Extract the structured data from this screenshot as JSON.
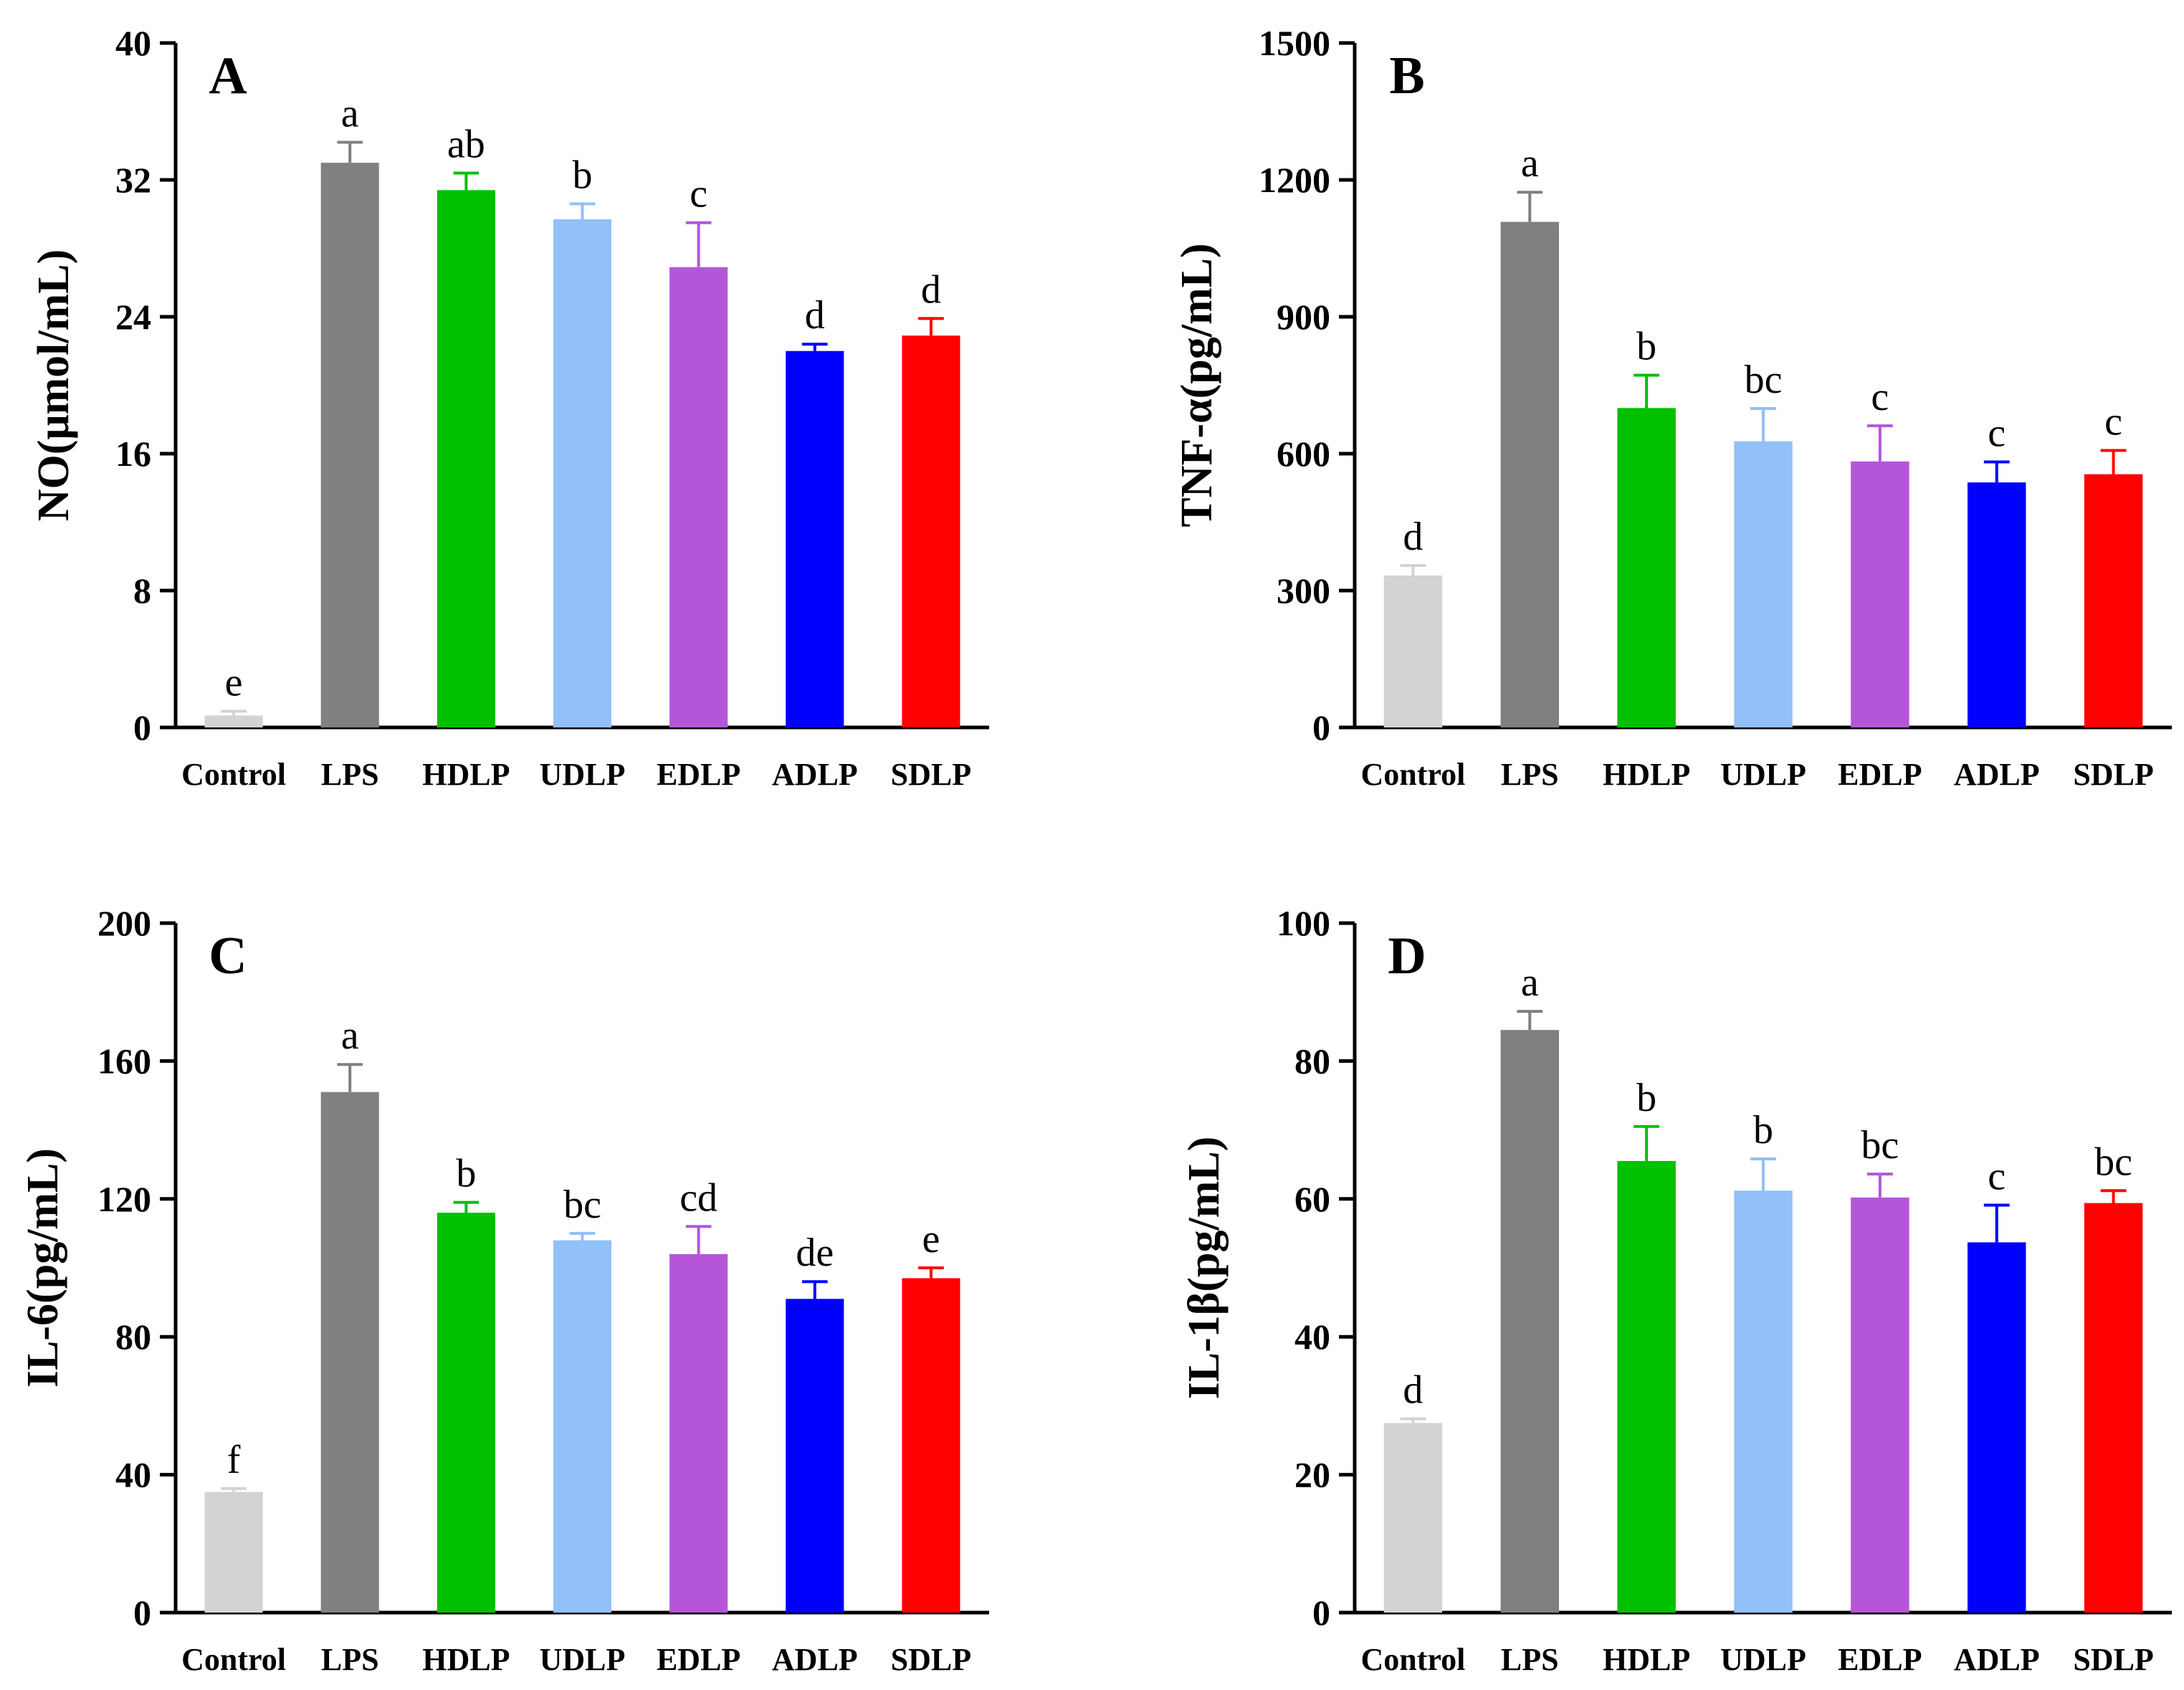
{
  "chart_data": [
    {
      "type": "bar",
      "panel": "A",
      "ylabel": "NO(μmol/mL)",
      "ylim": [
        0,
        40
      ],
      "yticks": [
        0,
        8,
        16,
        24,
        32,
        40
      ],
      "ytick_labels": [
        "0",
        "8",
        "16",
        "24",
        "32",
        "40"
      ],
      "categories": [
        "Control",
        "LPS",
        "HDLP",
        "UDLP",
        "EDLP",
        "ADLP",
        "SDLP"
      ],
      "values": [
        0.7,
        33.0,
        31.4,
        29.7,
        26.9,
        22.0,
        22.9
      ],
      "errors": [
        0.25,
        1.2,
        1.0,
        0.9,
        2.6,
        0.4,
        1.0
      ],
      "significance": [
        "e",
        "a",
        "ab",
        "b",
        "c",
        "d",
        "d"
      ],
      "colors": [
        "#d3d3d3",
        "#808080",
        "#00c000",
        "#92c0f8",
        "#b556d8",
        "#0000ff",
        "#ff0000"
      ]
    },
    {
      "type": "bar",
      "panel": "B",
      "ylabel": "TNF-α(pg/mL)",
      "ylim": [
        0,
        1500
      ],
      "yticks": [
        0,
        300,
        600,
        900,
        1200,
        1500
      ],
      "ytick_labels": [
        "0",
        "300",
        "600",
        "900",
        "1200",
        "1500"
      ],
      "categories": [
        "Control",
        "LPS",
        "HDLP",
        "UDLP",
        "EDLP",
        "ADLP",
        "SDLP"
      ],
      "values": [
        333,
        1108,
        700,
        627,
        583,
        537,
        555
      ],
      "errors": [
        22,
        65,
        72,
        72,
        78,
        45,
        52
      ],
      "significance": [
        "d",
        "a",
        "b",
        "bc",
        "c",
        "c",
        "c"
      ],
      "colors": [
        "#d3d3d3",
        "#808080",
        "#00c000",
        "#92c0f8",
        "#b556d8",
        "#0000ff",
        "#ff0000"
      ]
    },
    {
      "type": "bar",
      "panel": "C",
      "ylabel": "IL-6(pg/mL)",
      "ylim": [
        0,
        200
      ],
      "yticks": [
        0,
        40,
        80,
        120,
        160,
        200
      ],
      "ytick_labels": [
        "0",
        "40",
        "80",
        "120",
        "160",
        "200"
      ],
      "categories": [
        "Control",
        "LPS",
        "HDLP",
        "UDLP",
        "EDLP",
        "ADLP",
        "SDLP"
      ],
      "values": [
        35,
        151,
        116,
        108,
        104,
        91,
        97
      ],
      "errors": [
        1,
        8,
        3,
        2,
        8,
        5,
        3
      ],
      "significance": [
        "f",
        "a",
        "b",
        "bc",
        "cd",
        "de",
        "e"
      ],
      "colors": [
        "#d3d3d3",
        "#808080",
        "#00c000",
        "#92c0f8",
        "#b556d8",
        "#0000ff",
        "#ff0000"
      ]
    },
    {
      "type": "bar",
      "panel": "D",
      "ylabel": "IL-1β(pg/mL)",
      "ylim": [
        0,
        100
      ],
      "yticks": [
        0,
        20,
        40,
        60,
        80,
        100
      ],
      "ytick_labels": [
        "0",
        "20",
        "40",
        "60",
        "80",
        "100"
      ],
      "categories": [
        "Control",
        "LPS",
        "HDLP",
        "UDLP",
        "EDLP",
        "ADLP",
        "SDLP"
      ],
      "values": [
        27.5,
        84.5,
        65.5,
        61.2,
        60.2,
        53.7,
        59.4
      ],
      "errors": [
        0.6,
        2.7,
        5.0,
        4.6,
        3.4,
        5.4,
        1.8
      ],
      "significance": [
        "d",
        "a",
        "b",
        "b",
        "bc",
        "c",
        "bc"
      ],
      "colors": [
        "#d3d3d3",
        "#808080",
        "#00c000",
        "#92c0f8",
        "#b556d8",
        "#0000ff",
        "#ff0000"
      ]
    }
  ]
}
